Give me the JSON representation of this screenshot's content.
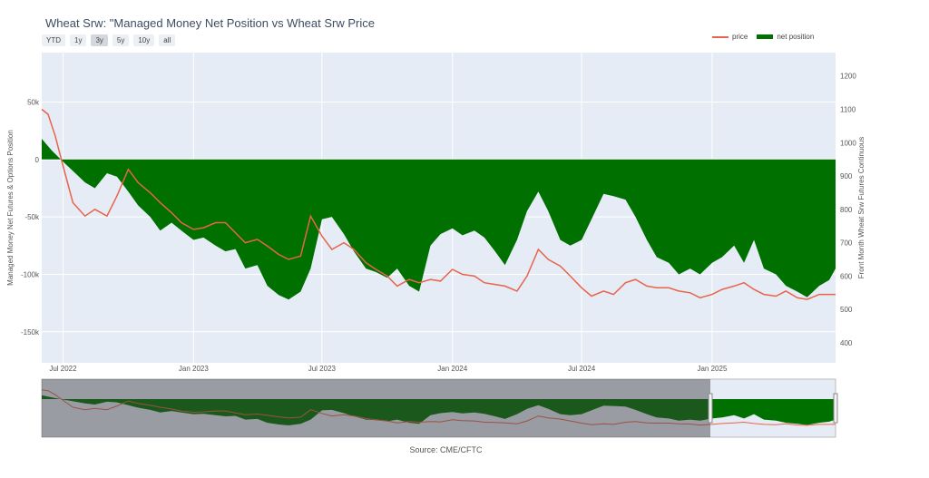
{
  "title": "Wheat Srw: \"Managed Money Net Position vs Wheat Srw Price",
  "range_buttons": [
    "YTD",
    "1y",
    "3y",
    "5y",
    "10y",
    "all"
  ],
  "range_active": "3y",
  "legend": {
    "price_label": "price",
    "net_label": "net position"
  },
  "source": "Source: CME/CFTC",
  "colors": {
    "price": "#e8644a",
    "net": "#007000",
    "plot_bg": "#e5ecf6"
  },
  "chart_data": {
    "type": "area",
    "xlabel": "",
    "y_left_label": "Managed Money Net Futures & Options Position",
    "y_right_label": "Front Month Wheat Srw Futures Continuous",
    "x_range": [
      "2022-06-01",
      "2025-06-24"
    ],
    "y_left_range": [
      -177000,
      93000
    ],
    "y_right_range": [
      340,
      1270
    ],
    "x_ticks": [
      {
        "date": "2022-07-01",
        "label": "Jul 2022"
      },
      {
        "date": "2023-01-01",
        "label": "Jan 2023"
      },
      {
        "date": "2023-07-01",
        "label": "Jul 2023"
      },
      {
        "date": "2024-01-01",
        "label": "Jan 2024"
      },
      {
        "date": "2024-07-01",
        "label": "Jul 2024"
      },
      {
        "date": "2025-01-01",
        "label": "Jan 2025"
      }
    ],
    "y_left_ticks": [
      {
        "value": 50000,
        "label": "50k"
      },
      {
        "value": 0,
        "label": "0"
      },
      {
        "value": -50000,
        "label": "-50k"
      },
      {
        "value": -100000,
        "label": "-100k"
      },
      {
        "value": -150000,
        "label": "-150k"
      }
    ],
    "y_right_ticks": [
      400,
      500,
      600,
      700,
      800,
      900,
      1000,
      1100,
      1200
    ],
    "series": [
      {
        "name": "net position",
        "axis": "left",
        "x": [
          "2022-06-01",
          "2022-06-15",
          "2022-07-01",
          "2022-07-15",
          "2022-08-01",
          "2022-08-15",
          "2022-09-01",
          "2022-09-15",
          "2022-10-01",
          "2022-10-15",
          "2022-11-01",
          "2022-11-15",
          "2022-12-01",
          "2022-12-15",
          "2023-01-01",
          "2023-01-15",
          "2023-02-01",
          "2023-02-15",
          "2023-03-01",
          "2023-03-15",
          "2023-04-01",
          "2023-04-15",
          "2023-05-01",
          "2023-05-15",
          "2023-06-01",
          "2023-06-15",
          "2023-07-01",
          "2023-07-15",
          "2023-08-01",
          "2023-08-15",
          "2023-09-01",
          "2023-09-15",
          "2023-10-01",
          "2023-10-15",
          "2023-11-01",
          "2023-11-15",
          "2023-12-01",
          "2023-12-15",
          "2024-01-01",
          "2024-01-15",
          "2024-02-01",
          "2024-02-15",
          "2024-03-01",
          "2024-03-15",
          "2024-04-01",
          "2024-04-15",
          "2024-05-01",
          "2024-05-15",
          "2024-06-01",
          "2024-06-15",
          "2024-07-01",
          "2024-07-15",
          "2024-08-01",
          "2024-08-15",
          "2024-09-01",
          "2024-09-15",
          "2024-10-01",
          "2024-10-15",
          "2024-11-01",
          "2024-11-15",
          "2024-12-01",
          "2024-12-15",
          "2025-01-01",
          "2025-01-15",
          "2025-02-01",
          "2025-02-15",
          "2025-03-01",
          "2025-03-15",
          "2025-04-01",
          "2025-04-15",
          "2025-05-01",
          "2025-05-15",
          "2025-06-01",
          "2025-06-15",
          "2025-06-24"
        ],
        "values": [
          18000,
          8000,
          -2000,
          -10000,
          -20000,
          -25000,
          -12000,
          -15000,
          -28000,
          -40000,
          -50000,
          -62000,
          -55000,
          -62000,
          -70000,
          -68000,
          -75000,
          -80000,
          -78000,
          -95000,
          -92000,
          -110000,
          -118000,
          -122000,
          -115000,
          -95000,
          -52000,
          -50000,
          -65000,
          -80000,
          -95000,
          -98000,
          -103000,
          -95000,
          -110000,
          -115000,
          -75000,
          -65000,
          -60000,
          -66000,
          -62000,
          -68000,
          -80000,
          -92000,
          -70000,
          -45000,
          -28000,
          -45000,
          -70000,
          -75000,
          -70000,
          -52000,
          -30000,
          -32000,
          -35000,
          -50000,
          -70000,
          -85000,
          -90000,
          -100000,
          -95000,
          -100000,
          -90000,
          -85000,
          -75000,
          -90000,
          -70000,
          -95000,
          -100000,
          -110000,
          -115000,
          -120000,
          -110000,
          -105000,
          -95000
        ]
      },
      {
        "name": "price",
        "axis": "right",
        "x": [
          "2022-06-01",
          "2022-06-10",
          "2022-06-20",
          "2022-07-01",
          "2022-07-15",
          "2022-08-01",
          "2022-08-15",
          "2022-09-01",
          "2022-09-15",
          "2022-10-01",
          "2022-10-15",
          "2022-11-01",
          "2022-11-15",
          "2022-12-01",
          "2022-12-15",
          "2023-01-01",
          "2023-01-15",
          "2023-02-01",
          "2023-02-15",
          "2023-03-01",
          "2023-03-15",
          "2023-04-01",
          "2023-04-15",
          "2023-05-01",
          "2023-05-15",
          "2023-06-01",
          "2023-06-15",
          "2023-07-01",
          "2023-07-15",
          "2023-08-01",
          "2023-08-15",
          "2023-09-01",
          "2023-09-15",
          "2023-10-01",
          "2023-10-15",
          "2023-11-01",
          "2023-11-15",
          "2023-12-01",
          "2023-12-15",
          "2024-01-01",
          "2024-01-15",
          "2024-02-01",
          "2024-02-15",
          "2024-03-01",
          "2024-03-15",
          "2024-04-01",
          "2024-04-15",
          "2024-05-01",
          "2024-05-15",
          "2024-06-01",
          "2024-06-15",
          "2024-07-01",
          "2024-07-15",
          "2024-08-01",
          "2024-08-15",
          "2024-09-01",
          "2024-09-15",
          "2024-10-01",
          "2024-10-15",
          "2024-11-01",
          "2024-11-15",
          "2024-12-01",
          "2024-12-15",
          "2025-01-01",
          "2025-01-15",
          "2025-02-01",
          "2025-02-15",
          "2025-03-01",
          "2025-03-15",
          "2025-04-01",
          "2025-04-15",
          "2025-05-01",
          "2025-05-15",
          "2025-06-01",
          "2025-06-24"
        ],
        "values": [
          1100,
          1085,
          1020,
          930,
          820,
          780,
          800,
          780,
          840,
          920,
          880,
          850,
          820,
          790,
          760,
          740,
          745,
          760,
          760,
          730,
          700,
          710,
          690,
          665,
          650,
          660,
          780,
          720,
          680,
          700,
          680,
          640,
          620,
          600,
          570,
          590,
          580,
          590,
          585,
          620,
          605,
          600,
          580,
          575,
          570,
          555,
          600,
          680,
          650,
          630,
          600,
          565,
          540,
          555,
          545,
          580,
          590,
          570,
          565,
          565,
          555,
          550,
          535,
          545,
          560,
          570,
          580,
          560,
          545,
          540,
          555,
          535,
          530,
          545,
          545
        ]
      }
    ]
  }
}
